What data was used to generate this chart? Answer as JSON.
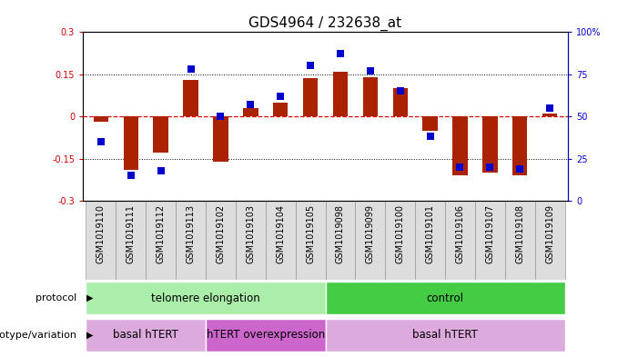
{
  "title": "GDS4964 / 232638_at",
  "samples": [
    "GSM1019110",
    "GSM1019111",
    "GSM1019112",
    "GSM1019113",
    "GSM1019102",
    "GSM1019103",
    "GSM1019104",
    "GSM1019105",
    "GSM1019098",
    "GSM1019099",
    "GSM1019100",
    "GSM1019101",
    "GSM1019106",
    "GSM1019107",
    "GSM1019108",
    "GSM1019109"
  ],
  "transformed_count": [
    -0.02,
    -0.19,
    -0.13,
    0.13,
    -0.16,
    0.03,
    0.05,
    0.135,
    0.16,
    0.14,
    0.1,
    -0.05,
    -0.21,
    -0.2,
    -0.21,
    0.01
  ],
  "percentile_rank": [
    35,
    15,
    18,
    78,
    50,
    57,
    62,
    80,
    87,
    77,
    65,
    38,
    20,
    20,
    19,
    55
  ],
  "bar_color": "#aa2200",
  "dot_color": "#0000cc",
  "ylim": [
    -0.3,
    0.3
  ],
  "yticks": [
    -0.3,
    -0.15,
    0.0,
    0.15,
    0.3
  ],
  "ytick_labels": [
    "-0.3",
    "-0.15",
    "0",
    "0.15",
    "0.3"
  ],
  "protocol_groups": [
    {
      "label": "telomere elongation",
      "start": 0,
      "end": 7,
      "color": "#aaeeaa"
    },
    {
      "label": "control",
      "start": 8,
      "end": 15,
      "color": "#44cc44"
    }
  ],
  "genotype_groups": [
    {
      "label": "basal hTERT",
      "start": 0,
      "end": 3,
      "color": "#ddaadd"
    },
    {
      "label": "hTERT overexpression",
      "start": 4,
      "end": 7,
      "color": "#cc66cc"
    },
    {
      "label": "basal hTERT",
      "start": 8,
      "end": 15,
      "color": "#ddaadd"
    }
  ],
  "bar_width": 0.5,
  "dot_size": 30,
  "background_color": "#ffffff",
  "tick_label_fontsize": 7,
  "title_fontsize": 11,
  "row_label_fontsize": 8,
  "group_label_fontsize": 8.5,
  "legend_fontsize": 8
}
